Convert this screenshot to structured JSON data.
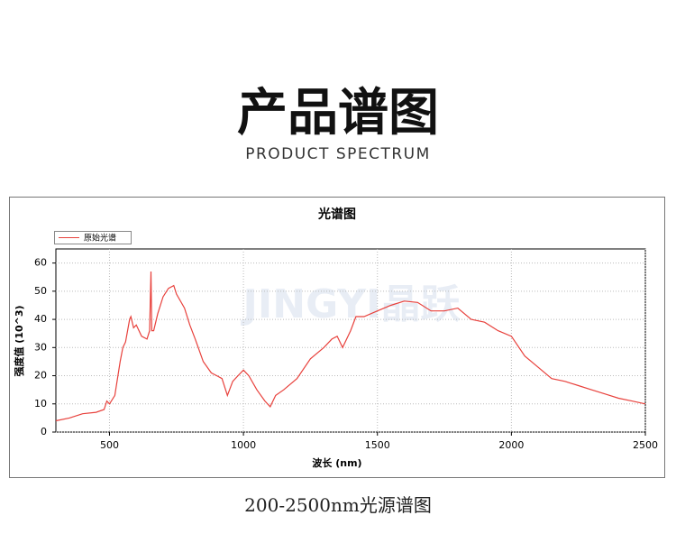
{
  "header": {
    "title": "产品谱图",
    "subtitle": "PRODUCT SPECTRUM"
  },
  "caption": "200-2500nm光源谱图",
  "watermark": "JINGYI晶跃",
  "chart_data": {
    "type": "line",
    "title": "光谱图",
    "x_label": "波长 (nm)",
    "y_label": "强度值 (10^3)",
    "xlim": [
      300,
      2500
    ],
    "ylim": [
      0,
      65
    ],
    "xticks": [
      500,
      1000,
      1500,
      2000,
      2500
    ],
    "yticks": [
      0,
      10,
      20,
      30,
      40,
      50,
      60
    ],
    "grid": true,
    "legend": "upper left",
    "x": [
      300,
      350,
      400,
      450,
      480,
      490,
      500,
      520,
      540,
      550,
      560,
      575,
      580,
      590,
      600,
      620,
      640,
      650,
      655,
      658,
      665,
      680,
      700,
      720,
      740,
      750,
      780,
      800,
      820,
      850,
      880,
      900,
      920,
      940,
      960,
      980,
      1000,
      1020,
      1050,
      1080,
      1100,
      1120,
      1150,
      1200,
      1250,
      1300,
      1330,
      1350,
      1370,
      1400,
      1420,
      1450,
      1500,
      1550,
      1600,
      1650,
      1700,
      1750,
      1800,
      1850,
      1900,
      1950,
      2000,
      2050,
      2100,
      2150,
      2200,
      2250,
      2300,
      2350,
      2400,
      2450,
      2500
    ],
    "series": [
      {
        "name": "原始光谱",
        "color": "#e8413c",
        "values": [
          4,
          5,
          6.5,
          7,
          8,
          11,
          10,
          13,
          25,
          30,
          32,
          40,
          41,
          37,
          38,
          34,
          33,
          36,
          57,
          36,
          36,
          42,
          48,
          51,
          52,
          49,
          44,
          38,
          33,
          25,
          21,
          20,
          19,
          13,
          18,
          20,
          22,
          20,
          15,
          11,
          9,
          13,
          15,
          19,
          26,
          30,
          33,
          34,
          30,
          36,
          41,
          41,
          43,
          45,
          46.5,
          46,
          43,
          43,
          44,
          40,
          39,
          36,
          34,
          27,
          23,
          19,
          18,
          16.5,
          15,
          13.5,
          12,
          11,
          10
        ]
      }
    ]
  }
}
